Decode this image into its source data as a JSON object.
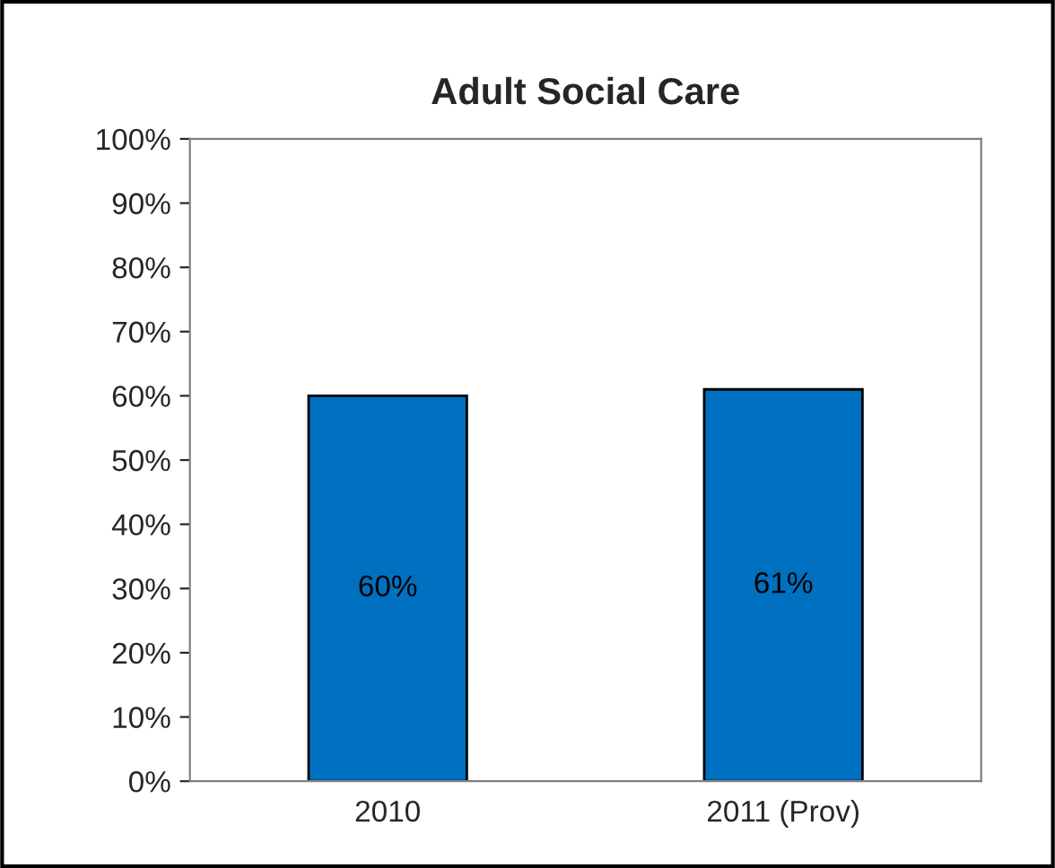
{
  "chart_data": {
    "type": "bar",
    "title": "Adult Social Care",
    "categories": [
      "2010",
      "2011 (Prov)"
    ],
    "values": [
      60,
      61
    ],
    "color": "#0070c0",
    "value_labels": [
      "60%",
      "61%"
    ],
    "ylim": [
      0,
      100
    ],
    "yticks": [
      {
        "value": 0,
        "label": "0%"
      },
      {
        "value": 10,
        "label": "10%"
      },
      {
        "value": 20,
        "label": "20%"
      },
      {
        "value": 30,
        "label": "30%"
      },
      {
        "value": 40,
        "label": "40%"
      },
      {
        "value": 50,
        "label": "50%"
      },
      {
        "value": 60,
        "label": "60%"
      },
      {
        "value": 70,
        "label": "70%"
      },
      {
        "value": 80,
        "label": "80%"
      },
      {
        "value": 90,
        "label": "90%"
      },
      {
        "value": 100,
        "label": "100%"
      }
    ],
    "grid": false,
    "legend": false
  }
}
